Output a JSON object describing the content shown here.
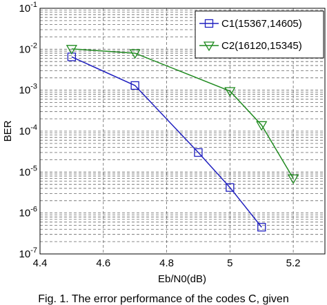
{
  "chart_data": {
    "type": "line",
    "xlabel": "Eb/N0(dB)",
    "ylabel": "BER",
    "caption": "Fig. 1. The error performance of the codes C, given",
    "x": [
      4.5,
      4.7,
      4.9,
      5.0,
      5.1,
      5.2
    ],
    "series": [
      {
        "name": "C1(15367,14605)",
        "color": "#1f1fbf",
        "marker": "square",
        "values": [
          0.0065,
          0.0013,
          3e-05,
          4.2e-06,
          4.5e-07,
          null
        ]
      },
      {
        "name": "C2(16120,15345)",
        "color": "#1f8a1f",
        "marker": "triangle-down",
        "values": [
          0.0102,
          0.008,
          null,
          0.00095,
          0.00014,
          7e-06
        ]
      }
    ],
    "xlim": [
      4.4,
      5.3
    ],
    "xticks": [
      4.4,
      4.6,
      4.8,
      {
        "value": 5,
        "label": "5"
      },
      5.2
    ],
    "ylim": [
      1e-07,
      0.1
    ],
    "ylog": true,
    "yticks": [
      {
        "value": 1e-07,
        "label": "10",
        "exponent": "-7"
      },
      {
        "value": 1e-06,
        "label": "10",
        "exponent": "-6"
      },
      {
        "value": 1e-05,
        "label": "10",
        "exponent": "-5"
      },
      {
        "value": 0.0001,
        "label": "10",
        "exponent": "-4"
      },
      {
        "value": 0.001,
        "label": "10",
        "exponent": "-3"
      },
      {
        "value": 0.01,
        "label": "10",
        "exponent": "-2"
      },
      {
        "value": 0.1,
        "label": "10",
        "exponent": "-1"
      }
    ],
    "yminor": [
      2e-07,
      3e-07,
      4e-07,
      5e-07,
      6e-07,
      7e-07,
      8e-07,
      9e-07,
      2e-06,
      3e-06,
      4e-06,
      5e-06,
      6e-06,
      7e-06,
      8e-06,
      9e-06,
      2e-05,
      3e-05,
      4e-05,
      5e-05,
      6e-05,
      7e-05,
      8e-05,
      9e-05,
      0.0002,
      0.0003,
      0.0004,
      0.0005,
      0.0006,
      0.0007,
      0.0008,
      0.0009,
      0.002,
      0.003,
      0.004,
      0.005,
      0.006,
      0.007,
      0.008,
      0.009,
      0.02,
      0.03,
      0.04,
      0.05,
      0.06,
      0.07,
      0.08,
      0.09
    ],
    "grid": true,
    "legend": "upper right"
  }
}
